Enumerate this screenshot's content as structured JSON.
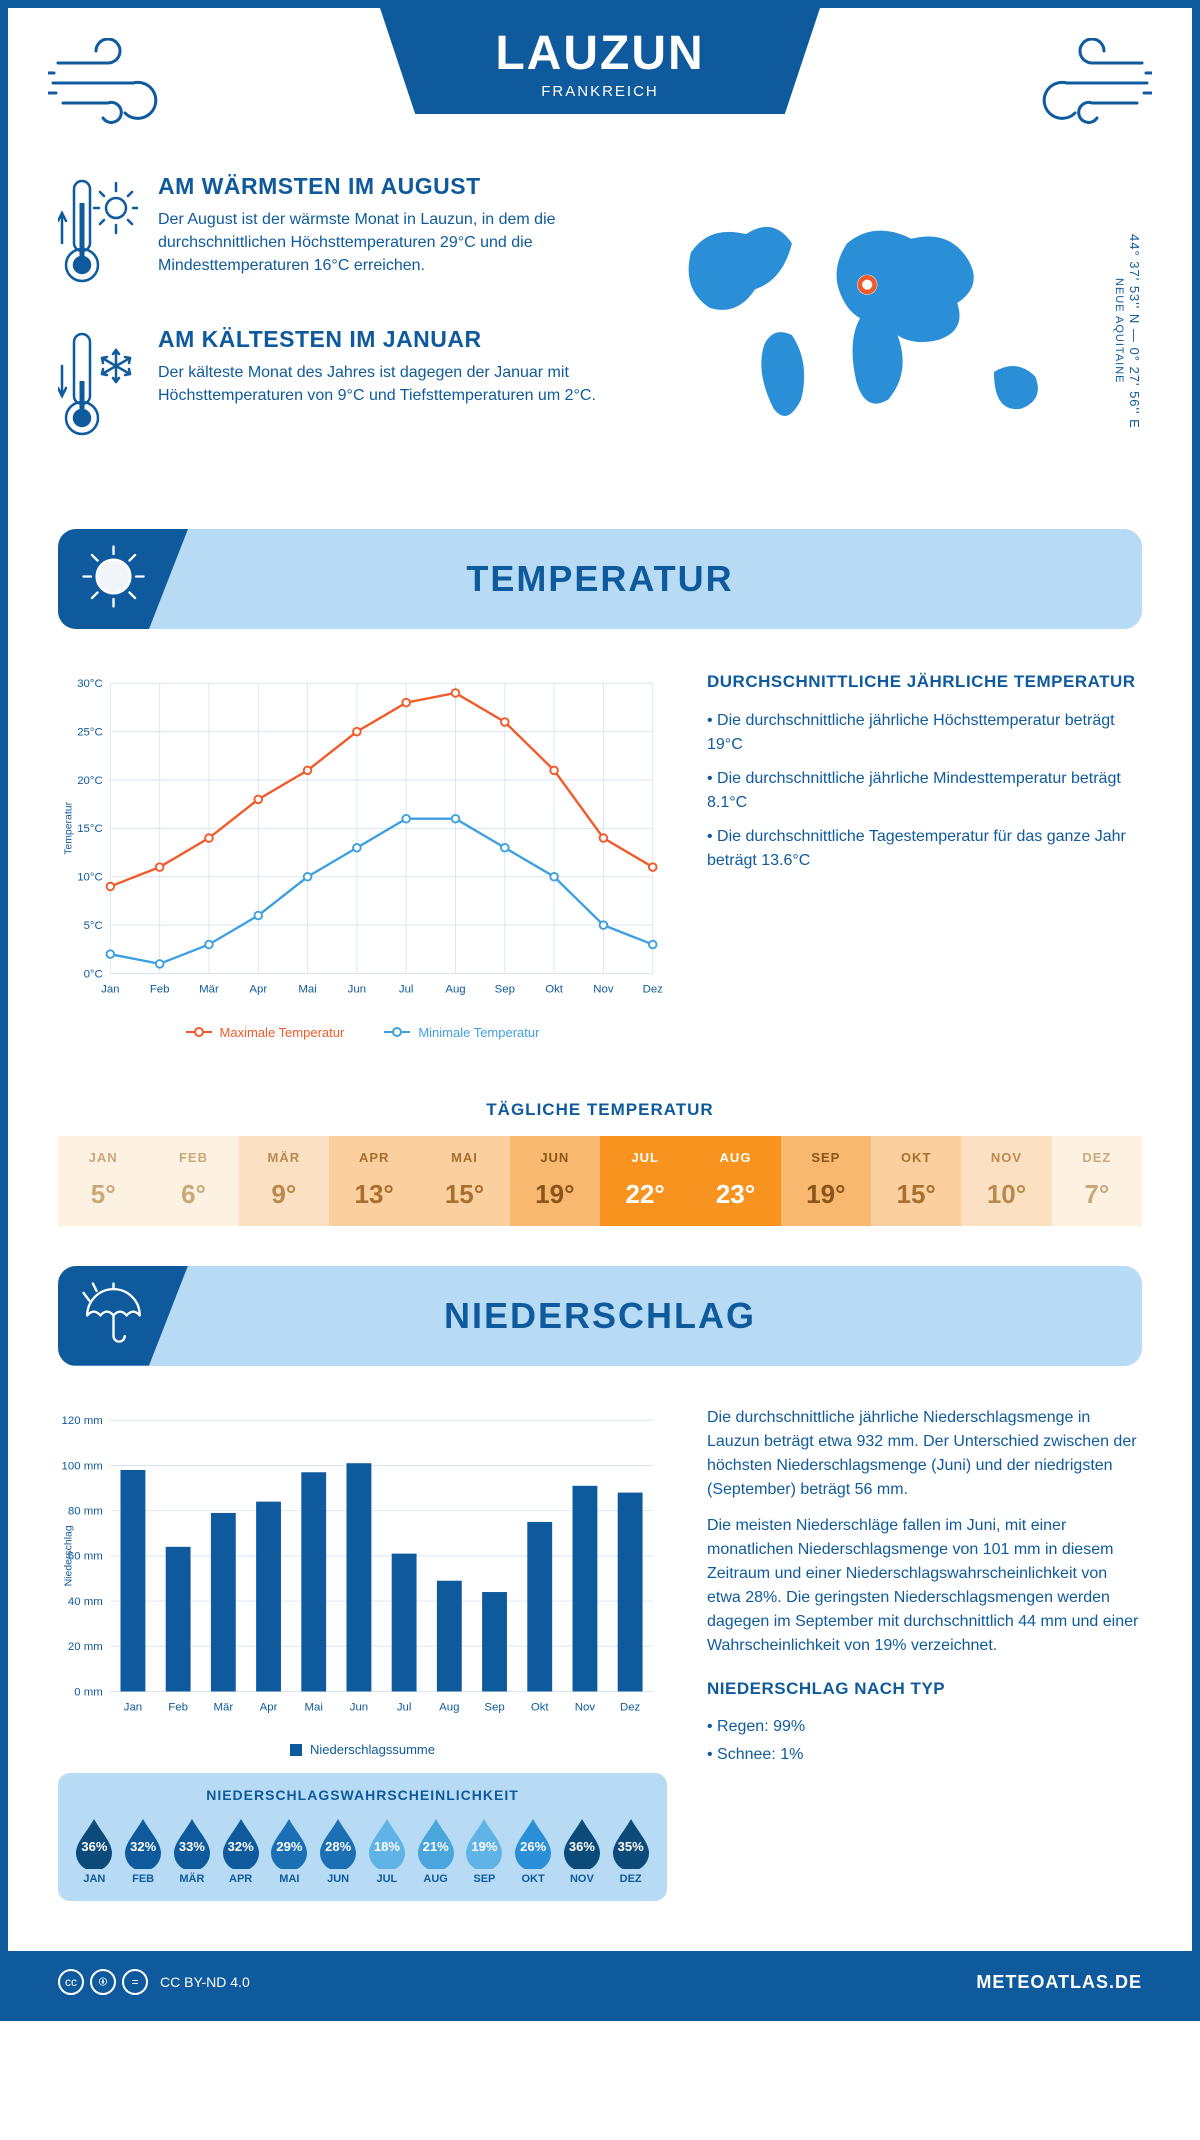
{
  "header": {
    "city": "LAUZUN",
    "country": "FRANKREICH",
    "coords": "44° 37' 53'' N — 0° 27' 56'' E",
    "region": "NEUE AQUITAINE"
  },
  "colors": {
    "primary": "#0e5a9c",
    "light": "#b7dbf4",
    "accent_blue": "#2a8fd6",
    "line_max": "#f15a29",
    "line_min": "#3ea0e0",
    "grid": "#d9e6f2",
    "bar": "#0e5a9c"
  },
  "facts": {
    "warm": {
      "title": "AM WÄRMSTEN IM AUGUST",
      "text": "Der August ist der wärmste Monat in Lauzun, in dem die durchschnittlichen Höchsttemperaturen 29°C und die Mindesttemperaturen 16°C erreichen."
    },
    "cold": {
      "title": "AM KÄLTESTEN IM JANUAR",
      "text": "Der kälteste Monat des Jahres ist dagegen der Januar mit Höchsttemperaturen von 9°C und Tiefsttemperaturen um 2°C."
    }
  },
  "sections": {
    "temperature": "TEMPERATUR",
    "precipitation": "NIEDERSCHLAG"
  },
  "months": [
    "Jan",
    "Feb",
    "Mär",
    "Apr",
    "Mai",
    "Jun",
    "Jul",
    "Aug",
    "Sep",
    "Okt",
    "Nov",
    "Dez"
  ],
  "months_upper": [
    "JAN",
    "FEB",
    "MÄR",
    "APR",
    "MAI",
    "JUN",
    "JUL",
    "AUG",
    "SEP",
    "OKT",
    "NOV",
    "DEZ"
  ],
  "temp_chart": {
    "ylabel": "Temperatur",
    "ylim": [
      0,
      30
    ],
    "ytick_step": 5,
    "ytick_suffix": "°C",
    "max_series": [
      9,
      11,
      14,
      18,
      21,
      25,
      28,
      29,
      26,
      21,
      14,
      11
    ],
    "min_series": [
      2,
      1,
      3,
      6,
      10,
      13,
      16,
      16,
      13,
      10,
      5,
      3
    ],
    "legend_max": "Maximale Temperatur",
    "legend_min": "Minimale Temperatur"
  },
  "temp_side": {
    "heading": "DURCHSCHNITTLICHE JÄHRLICHE TEMPERATUR",
    "b1": "• Die durchschnittliche jährliche Höchsttemperatur beträgt 19°C",
    "b2": "• Die durchschnittliche jährliche Mindesttemperatur beträgt 8.1°C",
    "b3": "• Die durchschnittliche Tagestemperatur für das ganze Jahr beträgt 13.6°C"
  },
  "daily_temp": {
    "title": "TÄGLICHE TEMPERATUR",
    "values": [
      5,
      6,
      9,
      13,
      15,
      19,
      22,
      23,
      19,
      15,
      10,
      7
    ],
    "cell_bg": [
      "#fdf1e2",
      "#fdf1e2",
      "#fce0c2",
      "#fbcf9e",
      "#fbcf9e",
      "#f9b86f",
      "#f7931e",
      "#f7931e",
      "#f9b86f",
      "#fbcf9e",
      "#fce0c2",
      "#fdf1e2"
    ],
    "text_colors": [
      "#c9a97a",
      "#c9a97a",
      "#b88a4f",
      "#a86f2e",
      "#a86f2e",
      "#8a5518",
      "#ffffff",
      "#ffffff",
      "#8a5518",
      "#a86f2e",
      "#b88a4f",
      "#c9a97a"
    ]
  },
  "precip_chart": {
    "ylabel": "Niederschlag",
    "ylim": [
      0,
      120
    ],
    "ytick_step": 20,
    "ytick_suffix": " mm",
    "values": [
      98,
      64,
      79,
      84,
      97,
      101,
      61,
      49,
      44,
      75,
      91,
      88
    ],
    "legend": "Niederschlagssumme",
    "bar_width": 0.55
  },
  "precip_side": {
    "p1": "Die durchschnittliche jährliche Niederschlagsmenge in Lauzun beträgt etwa 932 mm. Der Unterschied zwischen der höchsten Niederschlagsmenge (Juni) und der niedrigsten (September) beträgt 56 mm.",
    "p2": "Die meisten Niederschläge fallen im Juni, mit einer monatlichen Niederschlagsmenge von 101 mm in diesem Zeitraum und einer Niederschlagswahrscheinlichkeit von etwa 28%. Die geringsten Niederschlagsmengen werden dagegen im September mit durchschnittlich 44 mm und einer Wahrscheinlichkeit von 19% verzeichnet.",
    "type_heading": "NIEDERSCHLAG NACH TYP",
    "type1": "• Regen: 99%",
    "type2": "• Schnee: 1%"
  },
  "precip_prob": {
    "title": "NIEDERSCHLAGSWAHRSCHEINLICHKEIT",
    "values": [
      36,
      32,
      33,
      32,
      29,
      28,
      18,
      21,
      19,
      26,
      36,
      35
    ],
    "drop_colors": [
      "#0c4a7a",
      "#0e5a9c",
      "#0e5a9c",
      "#0e5a9c",
      "#1a6fb5",
      "#1a6fb5",
      "#5fb3e6",
      "#4aa5dc",
      "#5fb3e6",
      "#2a8fd6",
      "#0c4a7a",
      "#0c4a7a"
    ]
  },
  "footer": {
    "license": "CC BY-ND 4.0",
    "site": "METEOATLAS.DE"
  }
}
